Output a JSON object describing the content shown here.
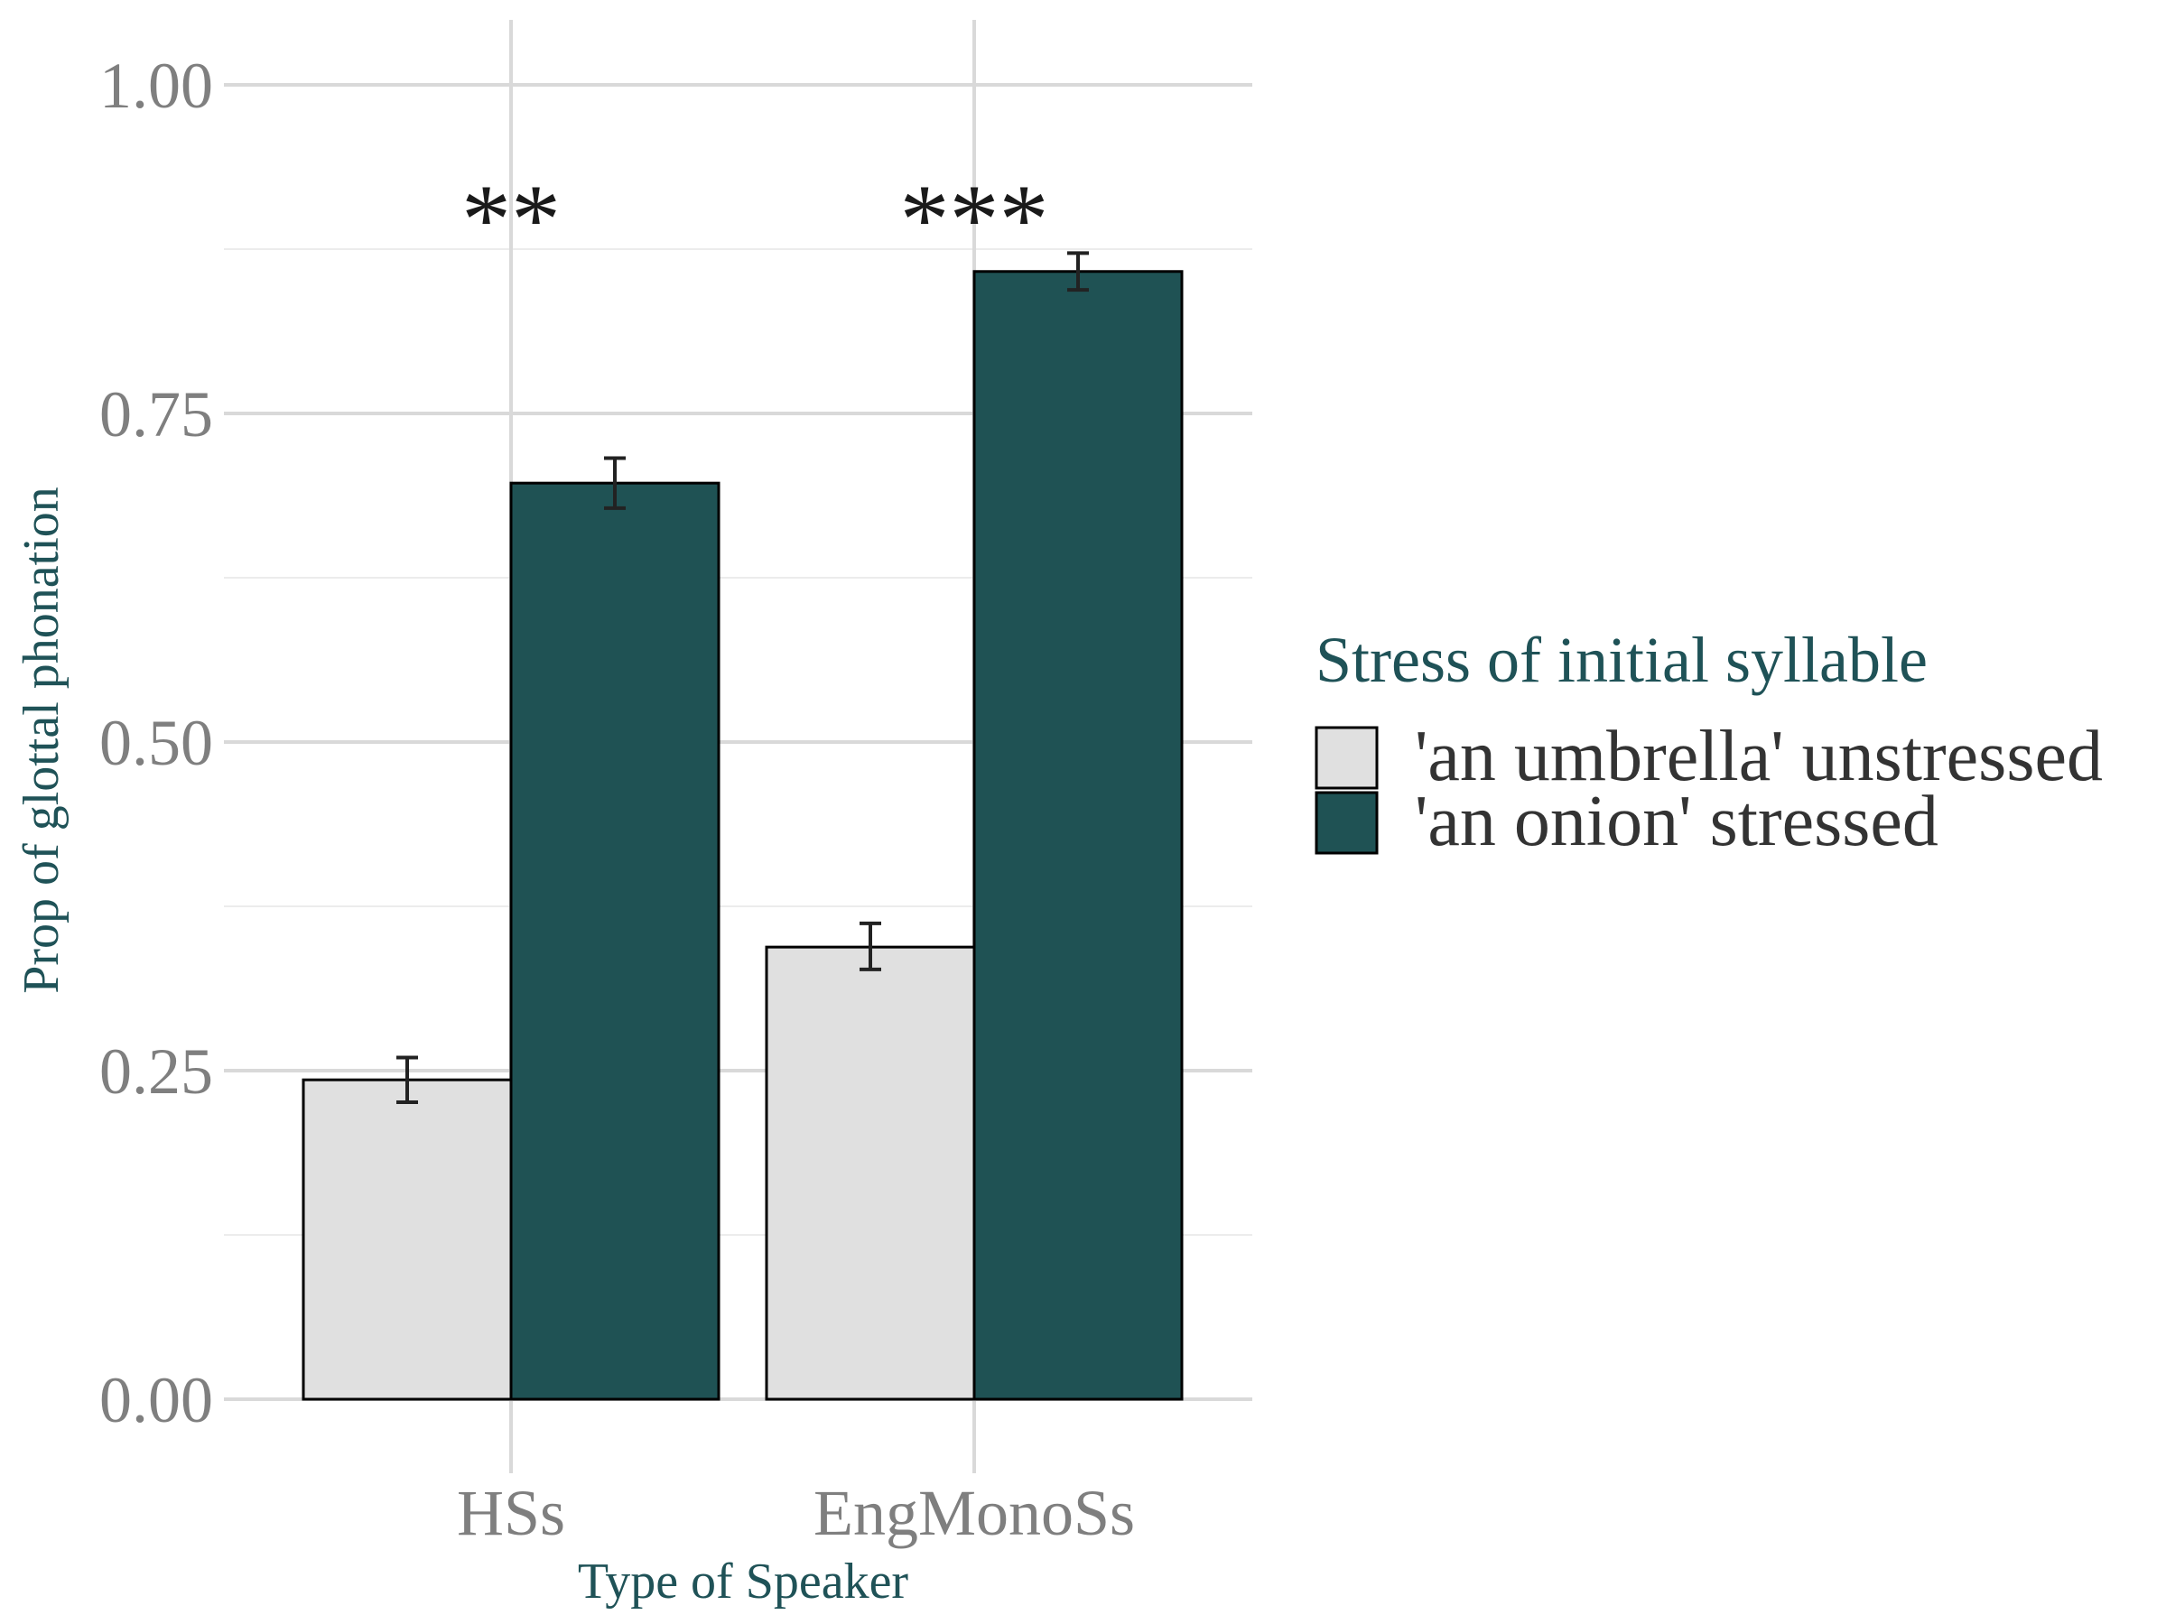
{
  "chart_data": {
    "type": "bar",
    "xlabel": "Type of Speaker",
    "ylabel": "Prop of glottal phonation",
    "ylim": [
      0,
      1
    ],
    "yticks": [
      "0.00",
      "0.25",
      "0.50",
      "0.75",
      "1.00"
    ],
    "categories": [
      "HSs",
      "EngMonoSs"
    ],
    "series": [
      {
        "name": "'an umbrella' unstressed",
        "color": "#e0e0e0",
        "values": [
          0.243,
          0.344
        ],
        "error_low": [
          0.226,
          0.327
        ],
        "error_high": [
          0.26,
          0.362
        ]
      },
      {
        "name": "'an onion' stressed",
        "color": "#1f5254",
        "values": [
          0.697,
          0.858
        ],
        "error_low": [
          0.678,
          0.844
        ],
        "error_high": [
          0.716,
          0.872
        ]
      }
    ],
    "significance": [
      "**",
      "***"
    ],
    "legend": {
      "title": "Stress of initial syllable",
      "position": "right"
    },
    "grid": true
  }
}
